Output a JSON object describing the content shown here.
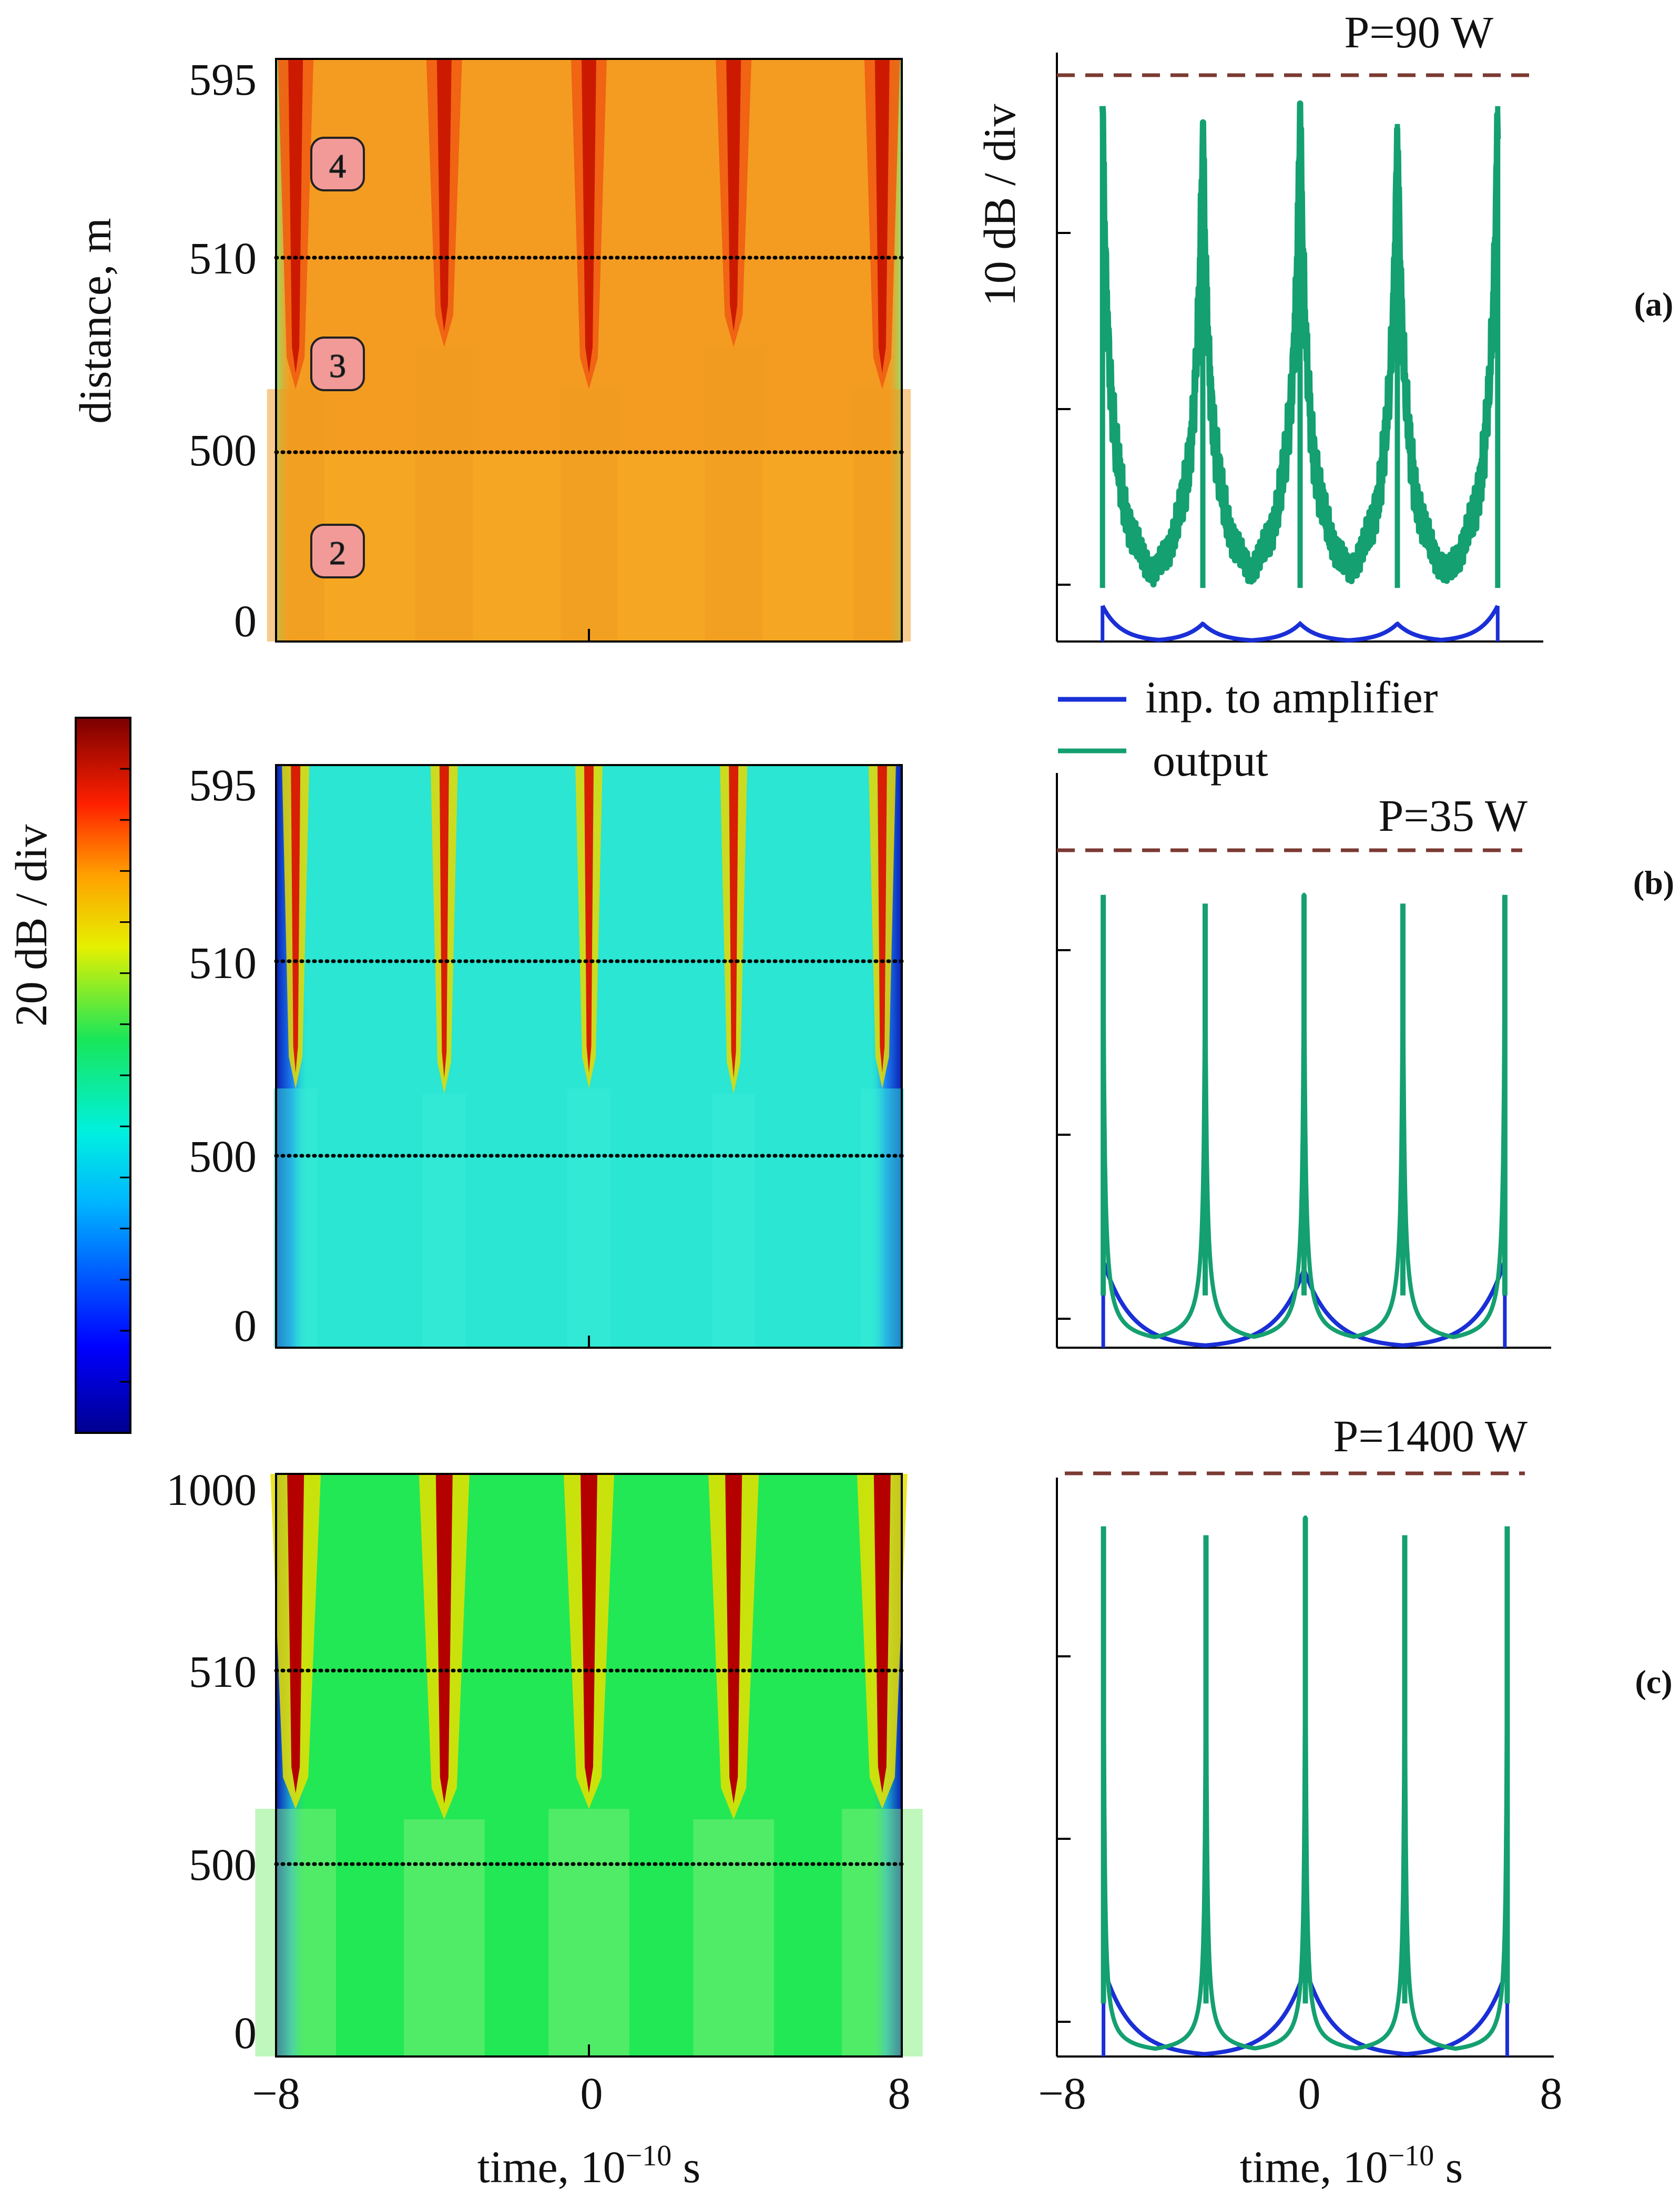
{
  "figure": {
    "x_axis_label": "time, 10",
    "x_axis_exp": "−10",
    "x_axis_unit": " s",
    "colorbar_label": "20 dB / div",
    "right_ylabel": "10 dB / div",
    "legend": {
      "input_label": "inp. to amplifier",
      "output_label": "output",
      "input_color": "#1a2fd6",
      "output_color": "#14a070"
    },
    "ref_line_color": "#7a3a32"
  },
  "chart_data": [
    {
      "id": "a",
      "type": "heatmap",
      "panel_label": "(a)",
      "ylabel": "distance, m",
      "y_ticks": [
        "0",
        "500",
        "510",
        "595"
      ],
      "x_ticks": [
        "−8",
        "0",
        "8"
      ],
      "x_range": [
        -8,
        8
      ],
      "section_boundaries_m": [
        500,
        510
      ],
      "section_badges": [
        "2",
        "3",
        "4"
      ],
      "pulse_times": [
        -7.5,
        -3.7,
        0,
        3.7,
        7.5
      ],
      "background_color": "#f5a623",
      "peak_color": "#cc1a00"
    },
    {
      "id": "a_profile",
      "type": "line",
      "power_label": "P=90 W",
      "x_range": [
        -8,
        8
      ],
      "ylim_div": [
        0,
        3.3
      ],
      "pulse_times": [
        -6.5,
        -3.2,
        0,
        3.2,
        6.5
      ],
      "series": [
        {
          "name": "inp. to amplifier",
          "peak_values_div": [
            0.2,
            0.1,
            0.1,
            0.1,
            0.2
          ]
        },
        {
          "name": "output",
          "peak_values_div": [
            3.0,
            2.9,
            3.0,
            2.9,
            3.0
          ]
        }
      ]
    },
    {
      "id": "b",
      "type": "heatmap",
      "panel_label": "(b)",
      "y_ticks": [
        "0",
        "500",
        "510",
        "595"
      ],
      "x_ticks": [
        "−8",
        "0",
        "8"
      ],
      "x_range": [
        -8,
        8
      ],
      "section_boundaries_m": [
        500,
        510
      ],
      "pulse_times": [
        -7.5,
        -3.7,
        0,
        3.7,
        7.5
      ],
      "background_color": "#2ae6d2",
      "peak_color": "#d81e05"
    },
    {
      "id": "b_profile",
      "type": "line",
      "power_label": "P=35 W",
      "x_range": [
        -8,
        8
      ],
      "ylim_div": [
        0,
        3.3
      ],
      "pulse_times": [
        -6.5,
        -3.2,
        0,
        3.2,
        6.5
      ],
      "series": [
        {
          "name": "inp. to amplifier",
          "peak_values_div": [
            0.5,
            0.0,
            0.45,
            0.0,
            0.5
          ]
        },
        {
          "name": "output",
          "peak_values_div": [
            2.6,
            2.55,
            2.6,
            2.55,
            2.6
          ]
        }
      ]
    },
    {
      "id": "c",
      "type": "heatmap",
      "panel_label": "(c)",
      "y_ticks": [
        "0",
        "500",
        "510",
        "1000"
      ],
      "x_ticks": [
        "−8",
        "0",
        "8"
      ],
      "x_range": [
        -8,
        8
      ],
      "section_boundaries_m": [
        500,
        510
      ],
      "pulse_times": [
        -7.5,
        -3.7,
        0,
        3.7,
        7.5
      ],
      "background_color": "#22e855",
      "peak_color": "#b50000"
    },
    {
      "id": "c_profile",
      "type": "line",
      "power_label": "P=1400 W",
      "x_range": [
        -8,
        8
      ],
      "ylim_div": [
        0,
        3.3
      ],
      "x_ticks": [
        "−8",
        "0",
        "8"
      ],
      "pulse_times": [
        -6.5,
        -3.2,
        0,
        3.2,
        6.5
      ],
      "series": [
        {
          "name": "inp. to amplifier",
          "peak_values_div": [
            0.5,
            0.0,
            0.5,
            0.0,
            0.5
          ]
        },
        {
          "name": "output",
          "peak_values_div": [
            3.0,
            2.95,
            3.05,
            2.95,
            3.0
          ]
        }
      ]
    }
  ]
}
